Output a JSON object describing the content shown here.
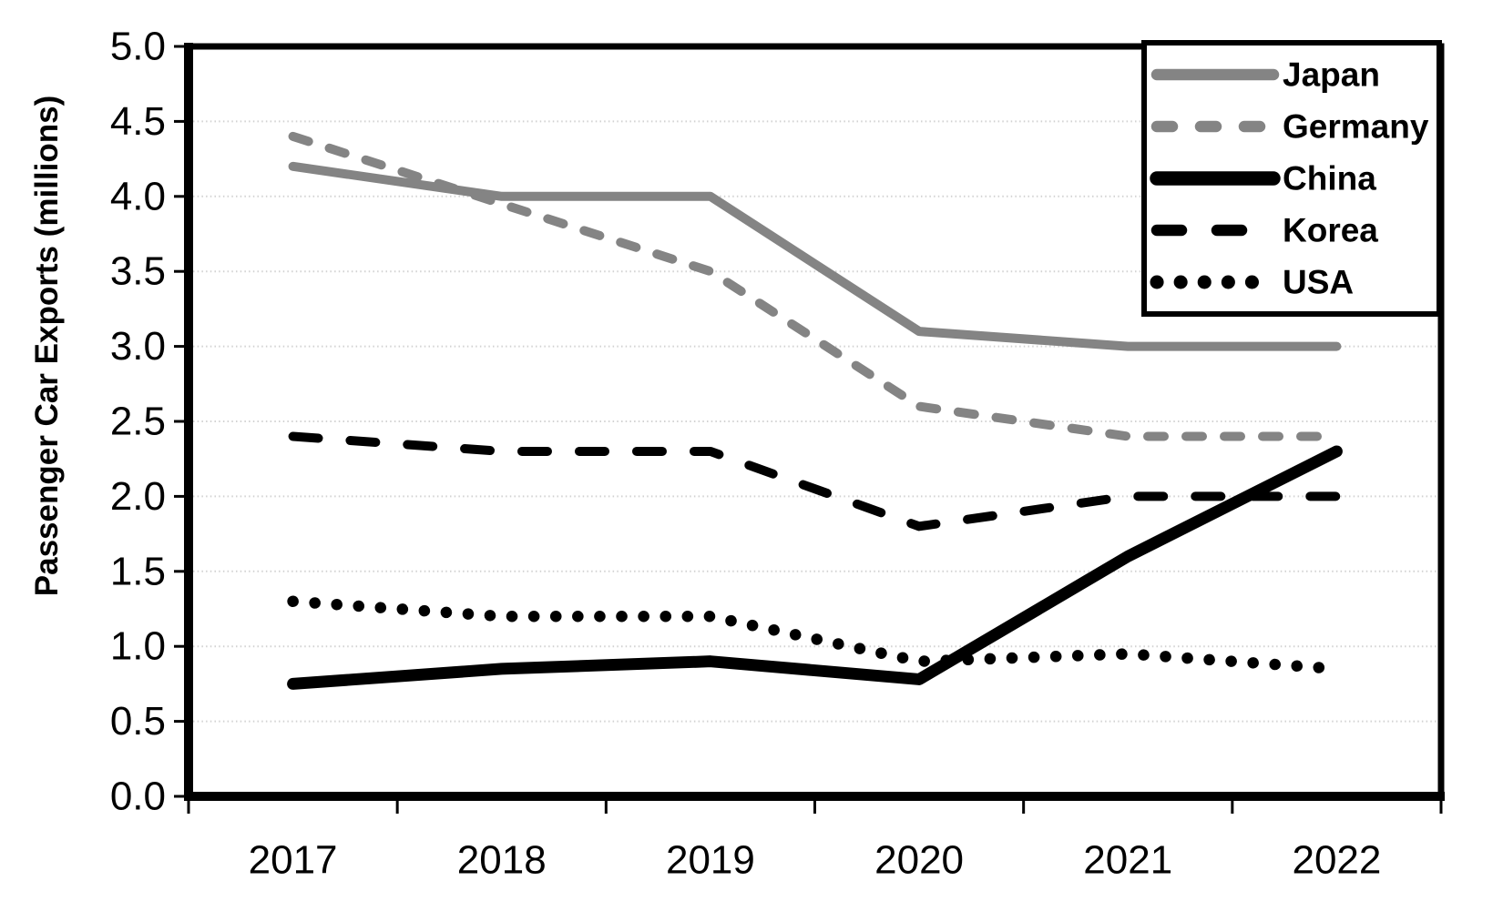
{
  "page": {
    "background_color": "#ffffff",
    "text_color": "#000000"
  },
  "chart_data": {
    "type": "line",
    "title": "",
    "xlabel": "",
    "ylabel": "Passenger Car Exports (millions)",
    "categories": [
      "2017",
      "2018",
      "2019",
      "2020",
      "2021",
      "2022"
    ],
    "ylim": [
      0,
      5
    ],
    "ytick_step": 0.5,
    "ytick_labels": [
      "0.0",
      "0.5",
      "1.0",
      "1.5",
      "2.0",
      "2.5",
      "3.0",
      "3.5",
      "4.0",
      "4.5",
      "5.0"
    ],
    "grid": "horizontal-dotted-light-gray",
    "gridline_color": "#d2d2d2",
    "frame_color": "#000000",
    "legend_position": "top-right-inside",
    "series": [
      {
        "name": "Japan",
        "color": "#848484",
        "style": "solid",
        "width": 10,
        "values": [
          4.2,
          4.0,
          4.0,
          3.1,
          3.0,
          3.0
        ]
      },
      {
        "name": "Germany",
        "color": "#848484",
        "style": "dashed",
        "width": 10,
        "values": [
          4.4,
          3.95,
          3.5,
          2.6,
          2.4,
          2.4
        ]
      },
      {
        "name": "China",
        "color": "#000000",
        "style": "solid",
        "width": 13,
        "values": [
          0.75,
          0.85,
          0.9,
          0.78,
          1.6,
          2.3
        ]
      },
      {
        "name": "Korea",
        "color": "#000000",
        "style": "long-dash",
        "width": 10,
        "values": [
          2.4,
          2.3,
          2.3,
          1.8,
          2.0,
          2.0
        ]
      },
      {
        "name": "USA",
        "color": "#000000",
        "style": "dotted",
        "width": 12.5,
        "values": [
          1.3,
          1.2,
          1.2,
          0.9,
          0.95,
          0.85
        ]
      }
    ]
  }
}
